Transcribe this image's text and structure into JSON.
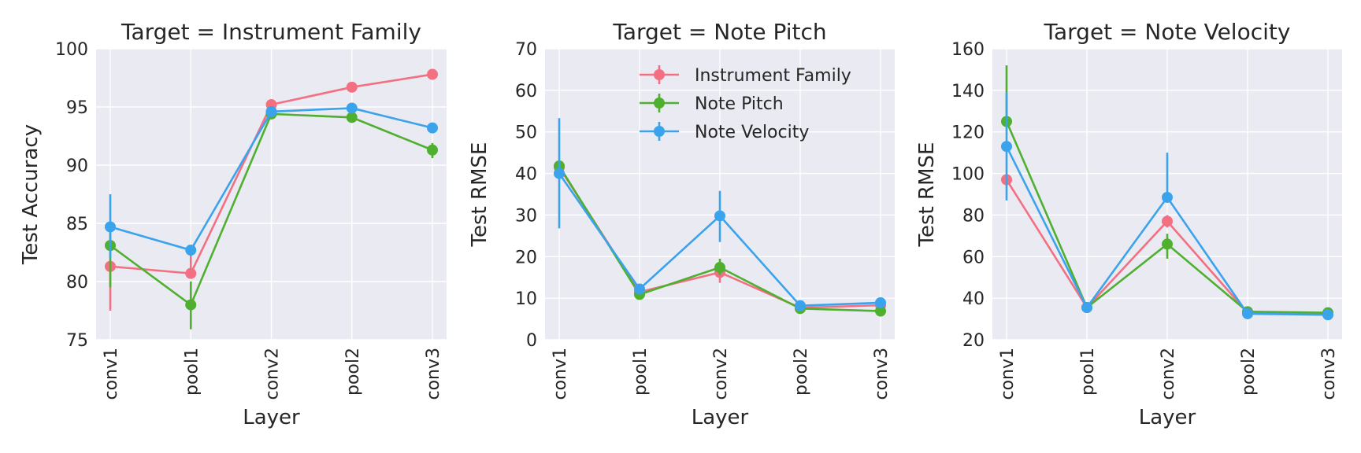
{
  "colors": {
    "instrument_family": "#f37083",
    "note_pitch": "#4faf2f",
    "note_velocity": "#3ba3ec"
  },
  "chart_data": [
    {
      "type": "line",
      "title": "Target = Instrument Family",
      "xlabel": "Layer",
      "ylabel": "Test Accuracy",
      "categories": [
        "conv1",
        "pool1",
        "conv2",
        "pool2",
        "conv3"
      ],
      "ylim": [
        75,
        100
      ],
      "yticks": [
        75,
        80,
        85,
        90,
        95,
        100
      ],
      "grid": true,
      "series": [
        {
          "name": "Instrument Family",
          "color": "#f37083",
          "values": [
            81.3,
            80.7,
            95.2,
            96.7,
            97.8
          ],
          "err_low": [
            77.5,
            80.7,
            95.2,
            96.7,
            97.8
          ],
          "err_high": [
            81.3,
            82.6,
            95.2,
            96.7,
            97.8
          ]
        },
        {
          "name": "Note Pitch",
          "color": "#4faf2f",
          "values": [
            83.1,
            78.0,
            94.4,
            94.1,
            91.3
          ],
          "err_low": [
            79.5,
            75.9,
            94.4,
            94.1,
            90.6
          ],
          "err_high": [
            84.5,
            80.0,
            94.4,
            94.1,
            91.9
          ]
        },
        {
          "name": "Note Velocity",
          "color": "#3ba3ec",
          "values": [
            84.7,
            82.7,
            94.6,
            94.9,
            93.2
          ],
          "err_low": [
            82.0,
            82.7,
            94.6,
            94.9,
            93.2
          ],
          "err_high": [
            87.5,
            82.7,
            94.6,
            94.9,
            93.2
          ]
        }
      ]
    },
    {
      "type": "line",
      "title": "Target = Note Pitch",
      "xlabel": "Layer",
      "ylabel": "Test RMSE",
      "categories": [
        "conv1",
        "pool1",
        "conv2",
        "pool2",
        "conv3"
      ],
      "ylim": [
        0,
        70
      ],
      "yticks": [
        0,
        10,
        20,
        30,
        40,
        50,
        60,
        70
      ],
      "grid": true,
      "legend": {
        "placement": "top-right",
        "entries": [
          "Instrument Family",
          "Note Pitch",
          "Note Velocity"
        ]
      },
      "series": [
        {
          "name": "Instrument Family",
          "color": "#f37083",
          "values": [
            41.5,
            11.5,
            16.2,
            7.7,
            8.3
          ],
          "err_low": [
            41.5,
            11.5,
            13.7,
            7.7,
            8.3
          ],
          "err_high": [
            41.5,
            11.5,
            17.5,
            7.7,
            8.3
          ]
        },
        {
          "name": "Note Pitch",
          "color": "#4faf2f",
          "values": [
            41.8,
            10.9,
            17.4,
            7.5,
            6.9
          ],
          "err_low": [
            41.8,
            10.9,
            15.5,
            7.5,
            6.9
          ],
          "err_high": [
            41.8,
            10.9,
            19.5,
            7.5,
            6.9
          ]
        },
        {
          "name": "Note Velocity",
          "color": "#3ba3ec",
          "values": [
            40.0,
            12.2,
            29.8,
            8.2,
            8.9
          ],
          "err_low": [
            26.8,
            12.2,
            23.5,
            8.2,
            8.9
          ],
          "err_high": [
            53.3,
            12.2,
            35.8,
            8.2,
            8.9
          ]
        }
      ]
    },
    {
      "type": "line",
      "title": "Target = Note Velocity",
      "xlabel": "Layer",
      "ylabel": "Test RMSE",
      "categories": [
        "conv1",
        "pool1",
        "conv2",
        "pool2",
        "conv3"
      ],
      "ylim": [
        20,
        160
      ],
      "yticks": [
        20,
        40,
        60,
        80,
        100,
        120,
        140,
        160
      ],
      "grid": true,
      "series": [
        {
          "name": "Instrument Family",
          "color": "#f37083",
          "values": [
            97,
            35.5,
            77,
            33,
            32.5
          ],
          "err_low": [
            97,
            35.5,
            74,
            33,
            32.5
          ],
          "err_high": [
            97,
            35.5,
            80,
            33,
            32.5
          ]
        },
        {
          "name": "Note Pitch",
          "color": "#4faf2f",
          "values": [
            125,
            35.5,
            66,
            33.5,
            33
          ],
          "err_low": [
            124,
            35.5,
            59,
            33.5,
            33
          ],
          "err_high": [
            152,
            35.5,
            71,
            33.5,
            33
          ]
        },
        {
          "name": "Note Velocity",
          "color": "#3ba3ec",
          "values": [
            113,
            35.5,
            88.5,
            32.5,
            32
          ],
          "err_low": [
            87,
            35.5,
            88.5,
            32.5,
            32
          ],
          "err_high": [
            139,
            35.5,
            110,
            32.5,
            32
          ]
        }
      ]
    }
  ]
}
